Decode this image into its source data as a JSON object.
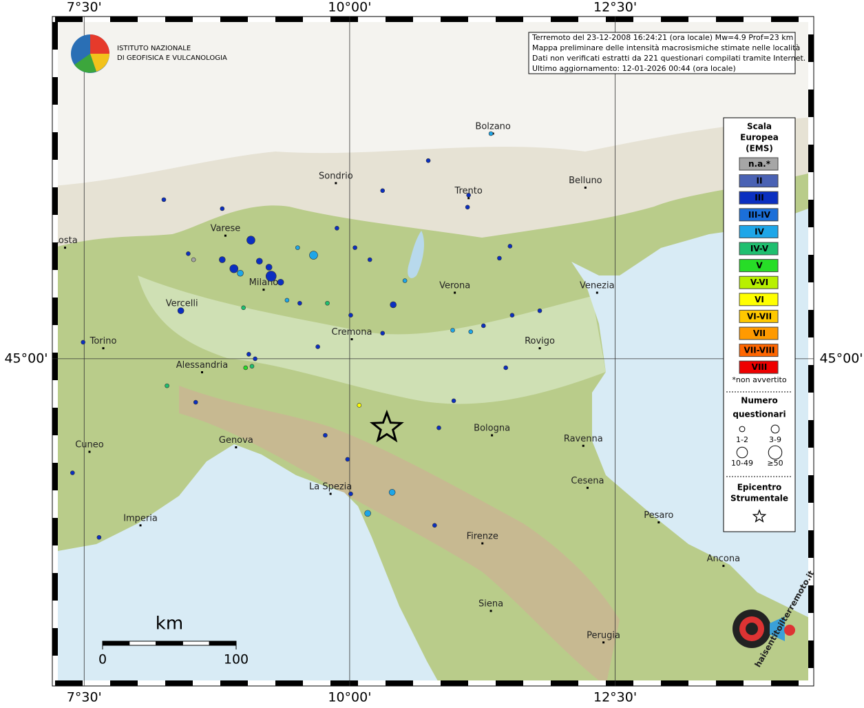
{
  "header": {
    "title": "Terremoto del 23-12-2008 16:24:21 (ora locale) Mw=4.9 Prof=23 km",
    "lines": [
      "Mappa preliminare delle intensità macrosismiche stimate nelle località",
      "Dati non verificati estratti da 221 questionari compilati tramite Internet.",
      "Ultimo aggiornamento: 12-01-2026 00:44 (ora locale)"
    ],
    "institute": [
      "ISTITUTO NAZIONALE",
      "DI GEOFISICA E VULCANOLOGIA"
    ],
    "site_logo": "haisentitoilterremoto.it"
  },
  "map": {
    "xlim": [
      7.2,
      14.37
    ],
    "ylim": [
      42.82,
      47.28
    ],
    "xticks": [
      {
        "value": 7.5,
        "label": "7°30'"
      },
      {
        "value": 10,
        "label": "10°00'"
      },
      {
        "value": 12.5,
        "label": "12°30'"
      }
    ],
    "yticks": [
      {
        "value": 45,
        "label": "45°00'"
      }
    ],
    "grid": true,
    "scale_bar": {
      "unit": "km",
      "ticks": [
        0,
        100
      ]
    },
    "cities": [
      {
        "name": "Bolzano",
        "lon": 11.35,
        "lat": 46.5
      },
      {
        "name": "Sondrio",
        "lon": 9.87,
        "lat": 46.17
      },
      {
        "name": "Trento",
        "lon": 11.12,
        "lat": 46.07
      },
      {
        "name": "Belluno",
        "lon": 12.22,
        "lat": 46.14
      },
      {
        "name": "Varese",
        "lon": 8.83,
        "lat": 45.82
      },
      {
        "name": "Aosta",
        "lon": 7.32,
        "lat": 45.74
      },
      {
        "name": "Milano",
        "lon": 9.19,
        "lat": 45.46
      },
      {
        "name": "Vercelli",
        "lon": 8.42,
        "lat": 45.32
      },
      {
        "name": "Verona",
        "lon": 10.99,
        "lat": 45.44
      },
      {
        "name": "Venezia",
        "lon": 12.33,
        "lat": 45.44
      },
      {
        "name": "Torino",
        "lon": 7.68,
        "lat": 45.07
      },
      {
        "name": "Cremona",
        "lon": 10.02,
        "lat": 45.13
      },
      {
        "name": "Rovigo",
        "lon": 11.79,
        "lat": 45.07
      },
      {
        "name": "Alessandria",
        "lon": 8.61,
        "lat": 44.91
      },
      {
        "name": "Bologna",
        "lon": 11.34,
        "lat": 44.49
      },
      {
        "name": "Genova",
        "lon": 8.93,
        "lat": 44.41
      },
      {
        "name": "Ravenna",
        "lon": 12.2,
        "lat": 44.42
      },
      {
        "name": "Cuneo",
        "lon": 7.55,
        "lat": 44.38
      },
      {
        "name": "La Spezia",
        "lon": 9.82,
        "lat": 44.1
      },
      {
        "name": "Cesena",
        "lon": 12.24,
        "lat": 44.14
      },
      {
        "name": "Pesaro",
        "lon": 12.91,
        "lat": 43.91
      },
      {
        "name": "Imperia",
        "lon": 8.03,
        "lat": 43.89
      },
      {
        "name": "Firenze",
        "lon": 11.25,
        "lat": 43.77
      },
      {
        "name": "Ancona",
        "lon": 13.52,
        "lat": 43.62
      },
      {
        "name": "Siena",
        "lon": 11.33,
        "lat": 43.32
      },
      {
        "name": "Perugia",
        "lon": 12.39,
        "lat": 43.11
      }
    ],
    "epicenter": {
      "lon": 10.35,
      "lat": 44.54
    },
    "points": [
      {
        "lon": 8.25,
        "lat": 46.06,
        "ems": "III",
        "n": "1-2"
      },
      {
        "lon": 8.8,
        "lat": 46.0,
        "ems": "III",
        "n": "1-2"
      },
      {
        "lon": 8.48,
        "lat": 45.7,
        "ems": "III",
        "n": "1-2"
      },
      {
        "lon": 8.53,
        "lat": 45.66,
        "ems": "n.a.*",
        "n": "1-2"
      },
      {
        "lon": 9.07,
        "lat": 45.79,
        "ems": "III",
        "n": "10-49"
      },
      {
        "lon": 8.8,
        "lat": 45.66,
        "ems": "III",
        "n": "3-9"
      },
      {
        "lon": 8.91,
        "lat": 45.6,
        "ems": "III",
        "n": "10-49"
      },
      {
        "lon": 8.97,
        "lat": 45.57,
        "ems": "IV",
        "n": "3-9"
      },
      {
        "lon": 9.26,
        "lat": 45.55,
        "ems": "III",
        "n": "≥50"
      },
      {
        "lon": 9.24,
        "lat": 45.61,
        "ems": "III",
        "n": "3-9"
      },
      {
        "lon": 9.15,
        "lat": 45.65,
        "ems": "III",
        "n": "3-9"
      },
      {
        "lon": 9.35,
        "lat": 45.51,
        "ems": "III",
        "n": "3-9"
      },
      {
        "lon": 9.66,
        "lat": 45.69,
        "ems": "IV",
        "n": "10-49"
      },
      {
        "lon": 9.51,
        "lat": 45.74,
        "ems": "IV",
        "n": "1-2"
      },
      {
        "lon": 9.53,
        "lat": 45.37,
        "ems": "III",
        "n": "1-2"
      },
      {
        "lon": 9.0,
        "lat": 45.34,
        "ems": "IV-V",
        "n": "1-2"
      },
      {
        "lon": 8.41,
        "lat": 45.32,
        "ems": "III",
        "n": "3-9"
      },
      {
        "lon": 9.41,
        "lat": 45.39,
        "ems": "IV",
        "n": "1-2"
      },
      {
        "lon": 9.79,
        "lat": 45.37,
        "ems": "IV-V",
        "n": "1-2"
      },
      {
        "lon": 9.88,
        "lat": 45.87,
        "ems": "III",
        "n": "1-2"
      },
      {
        "lon": 10.05,
        "lat": 45.74,
        "ems": "III",
        "n": "1-2"
      },
      {
        "lon": 10.19,
        "lat": 45.66,
        "ems": "III",
        "n": "1-2"
      },
      {
        "lon": 10.41,
        "lat": 45.36,
        "ems": "III",
        "n": "3-9"
      },
      {
        "lon": 10.31,
        "lat": 46.12,
        "ems": "III",
        "n": "1-2"
      },
      {
        "lon": 10.74,
        "lat": 46.32,
        "ems": "III",
        "n": "1-2"
      },
      {
        "lon": 11.33,
        "lat": 46.5,
        "ems": "IV",
        "n": "1-2"
      },
      {
        "lon": 10.52,
        "lat": 45.52,
        "ems": "IV",
        "n": "1-2"
      },
      {
        "lon": 11.41,
        "lat": 45.67,
        "ems": "III",
        "n": "1-2"
      },
      {
        "lon": 11.51,
        "lat": 45.75,
        "ems": "III",
        "n": "1-2"
      },
      {
        "lon": 11.79,
        "lat": 45.32,
        "ems": "III",
        "n": "1-2"
      },
      {
        "lon": 11.53,
        "lat": 45.29,
        "ems": "III",
        "n": "1-2"
      },
      {
        "lon": 11.26,
        "lat": 45.22,
        "ems": "III",
        "n": "1-2"
      },
      {
        "lon": 11.14,
        "lat": 45.18,
        "ems": "IV",
        "n": "1-2"
      },
      {
        "lon": 10.97,
        "lat": 45.19,
        "ems": "IV",
        "n": "1-2"
      },
      {
        "lon": 10.31,
        "lat": 45.17,
        "ems": "III",
        "n": "1-2"
      },
      {
        "lon": 10.01,
        "lat": 45.29,
        "ems": "III",
        "n": "1-2"
      },
      {
        "lon": 9.7,
        "lat": 45.08,
        "ems": "III",
        "n": "1-2"
      },
      {
        "lon": 9.05,
        "lat": 45.03,
        "ems": "III",
        "n": "1-2"
      },
      {
        "lon": 9.11,
        "lat": 45.0,
        "ems": "III",
        "n": "1-2"
      },
      {
        "lon": 9.08,
        "lat": 44.95,
        "ems": "IV-V",
        "n": "1-2"
      },
      {
        "lon": 9.02,
        "lat": 44.94,
        "ems": "V",
        "n": "1-2"
      },
      {
        "lon": 8.28,
        "lat": 44.82,
        "ems": "IV-V",
        "n": "1-2"
      },
      {
        "lon": 8.55,
        "lat": 44.71,
        "ems": "III",
        "n": "1-2"
      },
      {
        "lon": 7.49,
        "lat": 45.11,
        "ems": "III",
        "n": "1-2"
      },
      {
        "lon": 7.39,
        "lat": 44.24,
        "ems": "III",
        "n": "1-2"
      },
      {
        "lon": 7.64,
        "lat": 43.81,
        "ems": "III",
        "n": "1-2"
      },
      {
        "lon": 10.09,
        "lat": 44.69,
        "ems": "VI",
        "n": "1-2"
      },
      {
        "lon": 9.77,
        "lat": 44.49,
        "ems": "III",
        "n": "1-2"
      },
      {
        "lon": 9.98,
        "lat": 44.33,
        "ems": "III",
        "n": "1-2"
      },
      {
        "lon": 10.01,
        "lat": 44.1,
        "ems": "III",
        "n": "1-2"
      },
      {
        "lon": 10.4,
        "lat": 44.11,
        "ems": "IV",
        "n": "3-9"
      },
      {
        "lon": 10.17,
        "lat": 43.97,
        "ems": "IV",
        "n": "3-9"
      },
      {
        "lon": 10.8,
        "lat": 43.89,
        "ems": "III",
        "n": "1-2"
      },
      {
        "lon": 10.98,
        "lat": 44.72,
        "ems": "III",
        "n": "1-2"
      },
      {
        "lon": 10.84,
        "lat": 44.54,
        "ems": "III",
        "n": "1-2"
      },
      {
        "lon": 11.47,
        "lat": 44.94,
        "ems": "III",
        "n": "1-2"
      },
      {
        "lon": 11.12,
        "lat": 46.09,
        "ems": "III",
        "n": "1-2"
      },
      {
        "lon": 11.11,
        "lat": 46.01,
        "ems": "III",
        "n": "1-2"
      }
    ]
  },
  "legend": {
    "title": [
      "Scala",
      "Europea",
      "(EMS)"
    ],
    "scale": [
      {
        "label": "n.a.*",
        "color": "#a6a6a6"
      },
      {
        "label": "II",
        "color": "#4a62b4"
      },
      {
        "label": "III",
        "color": "#0b2fc0"
      },
      {
        "label": "III-IV",
        "color": "#1b6fd9"
      },
      {
        "label": "IV",
        "color": "#1ea6e8"
      },
      {
        "label": "IV-V",
        "color": "#1fbf6f"
      },
      {
        "label": "V",
        "color": "#27dd27"
      },
      {
        "label": "V-VI",
        "color": "#b8f000"
      },
      {
        "label": "VI",
        "color": "#ffff00"
      },
      {
        "label": "VI-VII",
        "color": "#ffc800"
      },
      {
        "label": "VII",
        "color": "#ff9a00"
      },
      {
        "label": "VII-VIII",
        "color": "#ff6600"
      },
      {
        "label": "VIII",
        "color": "#ee0000"
      }
    ],
    "note": "*non avvertito",
    "count_title": [
      "Numero",
      "questionari"
    ],
    "counts": [
      "1-2",
      "3-9",
      "10-49",
      "≥50"
    ],
    "epicenter_title": [
      "Epicentro",
      "Strumentale"
    ]
  }
}
